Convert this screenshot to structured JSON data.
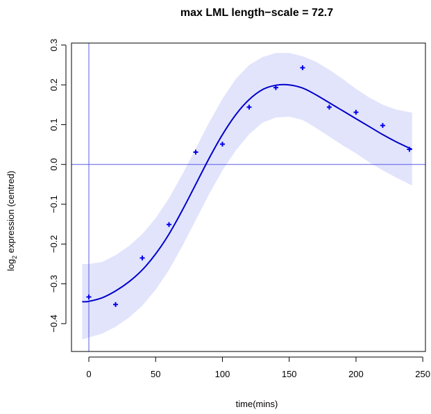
{
  "chart_data": {
    "type": "line",
    "title": "max LML length−scale = 72.7",
    "xlabel": "time(mins)",
    "ylabel_main": "log",
    "ylabel_sub": "2",
    "ylabel_rest": " expression (centred)",
    "xlim": [
      -13,
      252
    ],
    "ylim": [
      -0.47,
      0.305
    ],
    "x_ticks": [
      0,
      50,
      100,
      150,
      200,
      250
    ],
    "x_tick_labels": [
      "0",
      "50",
      "100",
      "150",
      "200",
      "250"
    ],
    "y_ticks": [
      -0.4,
      -0.3,
      -0.2,
      -0.1,
      0.0,
      0.1,
      0.2,
      0.3
    ],
    "y_tick_labels": [
      "−0.4",
      "−0.3",
      "−0.2",
      "−0.1",
      "0.0",
      "0.1",
      "0.2",
      "0.3"
    ],
    "reference_lines": {
      "vertical_x": 0,
      "horizontal_y": 0
    },
    "colors": {
      "points": "#0000ee",
      "mean": "#0000cc",
      "band": "#e2e4fc",
      "reference": "#5a5ae6",
      "axis": "#000000"
    },
    "observations": {
      "x": [
        0,
        20,
        40,
        60,
        80,
        100,
        120,
        140,
        160,
        180,
        200,
        220,
        240
      ],
      "y": [
        -0.333,
        -0.352,
        -0.235,
        -0.151,
        0.031,
        0.051,
        0.144,
        0.193,
        0.243,
        0.144,
        0.131,
        0.098,
        0.038
      ]
    },
    "mean": {
      "x": [
        -5,
        0,
        10,
        20,
        30,
        40,
        50,
        60,
        70,
        80,
        90,
        100,
        110,
        120,
        130,
        140,
        150,
        160,
        170,
        180,
        190,
        200,
        210,
        220,
        230,
        242
      ],
      "y": [
        -0.345,
        -0.344,
        -0.335,
        -0.318,
        -0.295,
        -0.265,
        -0.225,
        -0.175,
        -0.115,
        -0.05,
        0.015,
        0.075,
        0.125,
        0.163,
        0.188,
        0.199,
        0.2,
        0.192,
        0.175,
        0.155,
        0.135,
        0.115,
        0.095,
        0.075,
        0.057,
        0.038
      ]
    },
    "band_upper": {
      "x": [
        -5,
        0,
        10,
        20,
        30,
        40,
        50,
        60,
        70,
        80,
        90,
        100,
        110,
        120,
        130,
        140,
        150,
        160,
        170,
        180,
        190,
        200,
        210,
        220,
        230,
        242
      ],
      "y": [
        -0.25,
        -0.25,
        -0.245,
        -0.228,
        -0.205,
        -0.175,
        -0.135,
        -0.085,
        -0.025,
        0.04,
        0.105,
        0.165,
        0.215,
        0.25,
        0.27,
        0.28,
        0.28,
        0.272,
        0.258,
        0.238,
        0.215,
        0.19,
        0.168,
        0.15,
        0.138,
        0.13
      ]
    },
    "band_lower": {
      "x": [
        -5,
        0,
        10,
        20,
        30,
        40,
        50,
        60,
        70,
        80,
        90,
        100,
        110,
        120,
        130,
        140,
        150,
        160,
        170,
        180,
        190,
        200,
        210,
        220,
        230,
        242
      ],
      "y": [
        -0.44,
        -0.435,
        -0.425,
        -0.408,
        -0.385,
        -0.355,
        -0.315,
        -0.265,
        -0.205,
        -0.14,
        -0.075,
        -0.015,
        0.035,
        0.076,
        0.105,
        0.118,
        0.12,
        0.112,
        0.092,
        0.07,
        0.048,
        0.028,
        0.005,
        -0.015,
        -0.033,
        -0.053
      ]
    }
  }
}
